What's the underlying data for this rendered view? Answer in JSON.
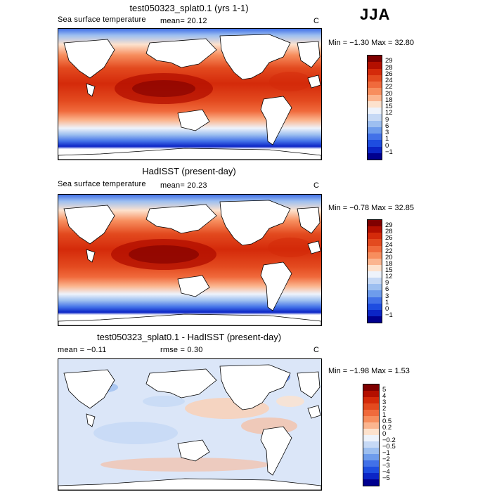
{
  "season": "JJA",
  "panels": [
    {
      "title": "test050323_splat0.1 (yrs 1-1)",
      "variable": "Sea surface temperature",
      "stat1": "mean=   20.12",
      "stat2": "",
      "units": "C",
      "minmax": "Min =   −1.30  Max =   32.80",
      "colorbar": {
        "labels": [
          "29",
          "28",
          "26",
          "24",
          "22",
          "20",
          "18",
          "15",
          "12",
          "9",
          "6",
          "3",
          "1",
          "0",
          "−1"
        ],
        "colors": [
          "#7f0000",
          "#b30f00",
          "#d42a0a",
          "#e34a1f",
          "#f06a3c",
          "#f78e5e",
          "#fbb58f",
          "#fde2cd",
          "#eef3fb",
          "#c6d9f5",
          "#9dbff0",
          "#6e9cec",
          "#4271e8",
          "#1e4de0",
          "#0b25c6",
          "#00008f"
        ]
      },
      "map": {
        "type": "warm",
        "mean_value": 20.12
      }
    },
    {
      "title": "HadISST (present-day)",
      "variable": "Sea surface temperature",
      "stat1": "mean=   20.23",
      "stat2": "",
      "units": "C",
      "minmax": "Min =   −0.78  Max =   32.85",
      "colorbar": {
        "labels": [
          "29",
          "28",
          "26",
          "24",
          "22",
          "20",
          "18",
          "15",
          "12",
          "9",
          "6",
          "3",
          "1",
          "0",
          "−1"
        ],
        "colors": [
          "#7f0000",
          "#b30f00",
          "#d42a0a",
          "#e34a1f",
          "#f06a3c",
          "#f78e5e",
          "#fbb58f",
          "#fde2cd",
          "#eef3fb",
          "#c6d9f5",
          "#9dbff0",
          "#6e9cec",
          "#4271e8",
          "#1e4de0",
          "#0b25c6",
          "#00008f"
        ]
      },
      "map": {
        "type": "warm",
        "mean_value": 20.23
      }
    },
    {
      "title": "test050323_splat0.1 - HadISST (present-day)",
      "variable": "",
      "stat1": "mean =   −0.11",
      "stat2": "rmse =    0.30",
      "units": "C",
      "minmax": "Min =   −1.98  Max =    1.53",
      "colorbar": {
        "labels": [
          "5",
          "4",
          "3",
          "2",
          "1",
          "0.5",
          "0.2",
          "0",
          "−0.2",
          "−0.5",
          "−1",
          "−2",
          "−3",
          "−4",
          "−5"
        ],
        "colors": [
          "#7f0000",
          "#b30f00",
          "#d42a0a",
          "#e34a1f",
          "#f06a3c",
          "#f78e5e",
          "#fbb58f",
          "#fde2cd",
          "#eef3fb",
          "#c6d9f5",
          "#9dbff0",
          "#6e9cec",
          "#4271e8",
          "#1e4de0",
          "#0b25c6",
          "#00008f"
        ]
      },
      "map": {
        "type": "diff",
        "mean_value": -0.11,
        "rmse": 0.3
      }
    }
  ]
}
